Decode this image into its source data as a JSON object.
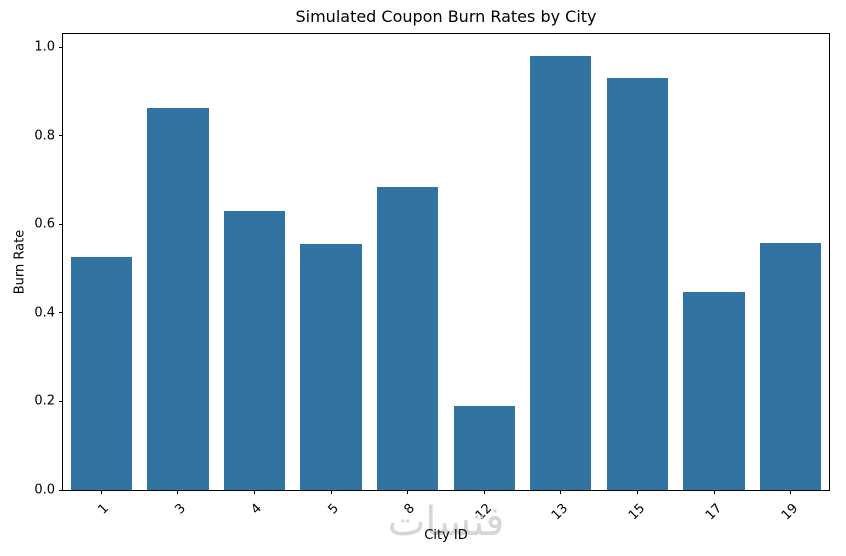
{
  "title": "Simulated Coupon Burn Rates by City",
  "watermark": "فتسات",
  "chart_data": {
    "type": "bar",
    "categories": [
      "1",
      "3",
      "4",
      "5",
      "8",
      "12",
      "13",
      "15",
      "17",
      "19"
    ],
    "values": [
      0.527,
      0.864,
      0.63,
      0.555,
      0.685,
      0.19,
      0.981,
      0.93,
      0.448,
      0.558
    ],
    "title": "Simulated Coupon Burn Rates by City",
    "xlabel": "City ID",
    "ylabel": "Burn Rate",
    "ylim": [
      0,
      1.03
    ],
    "yticks": [
      "0.0",
      "0.2",
      "0.4",
      "0.6",
      "0.8",
      "1.0"
    ],
    "bar_color": "#3274A1",
    "grid": false,
    "legend": null
  }
}
